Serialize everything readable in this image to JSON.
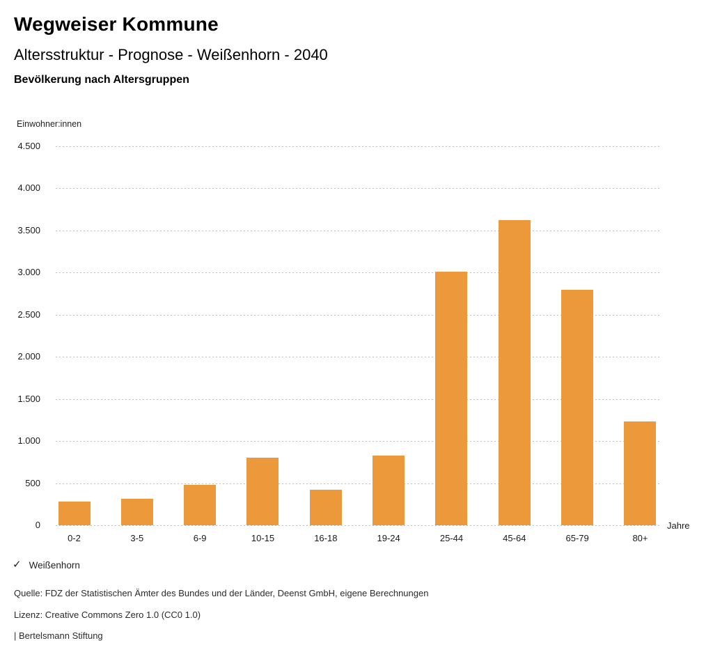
{
  "header": {
    "title": "Wegweiser Kommune",
    "subtitle": "Altersstruktur - Prognose - Weißenhorn - 2040",
    "section_heading": "Bevölkerung nach Altersgruppen"
  },
  "chart_data": {
    "type": "bar",
    "title": "Bevölkerung nach Altersgruppen",
    "ylabel": "Einwohner:innen",
    "xlabel": "Jahre",
    "categories": [
      "0-2",
      "3-5",
      "6-9",
      "10-15",
      "16-18",
      "19-24",
      "25-44",
      "45-64",
      "65-79",
      "80+"
    ],
    "series": [
      {
        "name": "Weißenhorn",
        "color": "#EC993C",
        "values": [
          280,
          315,
          480,
          805,
          420,
          830,
          3015,
          3620,
          2800,
          1230
        ]
      }
    ],
    "ylim": [
      0,
      4500
    ],
    "ytick_step": 500,
    "ytick_labels": [
      "0",
      "500",
      "1.000",
      "1.500",
      "2.000",
      "2.500",
      "3.000",
      "3.500",
      "4.000",
      "4.500"
    ],
    "grid": "dotted-horizontal",
    "legend_position": "bottom-left"
  },
  "legend": {
    "check_icon": "✓",
    "label": "Weißenhorn"
  },
  "footer": {
    "source": "Quelle: FDZ der Statistischen Ämter des Bundes und der Länder, Deenst GmbH, eigene Berechnungen",
    "license": "Lizenz: Creative Commons Zero 1.0 (CC0 1.0)",
    "attribution": "| Bertelsmann Stiftung"
  },
  "colors": {
    "bar": "#EC993C",
    "accent_check": "#EC993C",
    "gridline": "#BDBDBD",
    "text": "#1A1A1A"
  }
}
